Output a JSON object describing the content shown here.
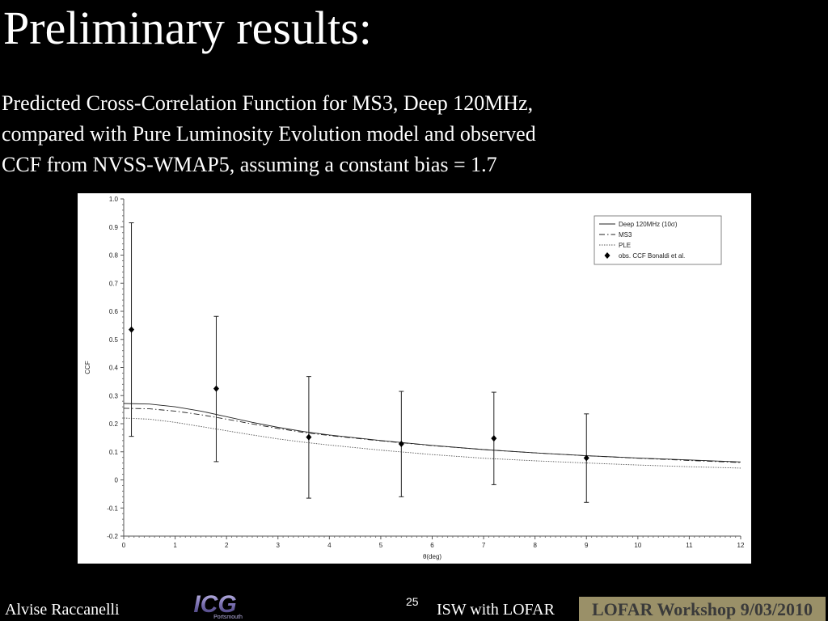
{
  "slide": {
    "title": "Preliminary results:",
    "subtitle_lines": [
      "Predicted Cross-Correlation Function for MS3, Deep 120MHz,",
      "compared with Pure Luminosity Evolution model and observed",
      "CCF from NVSS-WMAP5, assuming a constant bias = 1.7"
    ]
  },
  "footer": {
    "author": "Alvise Raccanelli",
    "logo_text": "ICG",
    "logo_subtext": "Portsmouth",
    "page_number": "25",
    "center_text": "ISW with LOFAR",
    "banner_text": "LOFAR Workshop 9/03/2010"
  },
  "colors": {
    "background": "#000000",
    "chart_background": "#ffffff",
    "banner": "#9a9068",
    "logo": "#7a6fb0"
  },
  "chart_data": {
    "type": "line",
    "xlabel": "θ(deg)",
    "ylabel": "CCF",
    "xlim": [
      0,
      12
    ],
    "ylim": [
      -0.2,
      1.0
    ],
    "x_ticks": [
      "0",
      "1",
      "2",
      "3",
      "4",
      "5",
      "6",
      "7",
      "8",
      "9",
      "10",
      "11",
      "12"
    ],
    "y_ticks": [
      "-0.2",
      "-0.1",
      "0",
      "0.1",
      "0.2",
      "0.3",
      "0.4",
      "0.5",
      "0.6",
      "0.7",
      "0.8",
      "0.9",
      "1.0"
    ],
    "grid": false,
    "legend_position": "top-right",
    "series": [
      {
        "name": "Deep 120MHz (10σ)",
        "style": "solid",
        "x": [
          0,
          0.5,
          1,
          1.5,
          2,
          2.5,
          3,
          3.5,
          4,
          5,
          6,
          7,
          8,
          9,
          10,
          11,
          12
        ],
        "y": [
          0.272,
          0.27,
          0.26,
          0.245,
          0.225,
          0.205,
          0.187,
          0.172,
          0.16,
          0.14,
          0.123,
          0.108,
          0.096,
          0.086,
          0.078,
          0.071,
          0.064
        ]
      },
      {
        "name": "MS3",
        "style": "dashdot",
        "x": [
          0,
          0.5,
          1,
          1.5,
          2,
          2.5,
          3,
          3.5,
          4,
          5,
          6,
          7,
          8,
          9,
          10,
          11,
          12
        ],
        "y": [
          0.255,
          0.253,
          0.245,
          0.232,
          0.216,
          0.199,
          0.183,
          0.169,
          0.158,
          0.139,
          0.122,
          0.108,
          0.096,
          0.086,
          0.077,
          0.069,
          0.062
        ]
      },
      {
        "name": "PLE",
        "style": "dotted",
        "x": [
          0,
          0.5,
          1,
          1.5,
          2,
          2.5,
          3,
          3.5,
          4,
          5,
          6,
          7,
          8,
          9,
          10,
          11,
          12
        ],
        "y": [
          0.22,
          0.216,
          0.205,
          0.19,
          0.175,
          0.16,
          0.146,
          0.134,
          0.124,
          0.106,
          0.09,
          0.077,
          0.068,
          0.06,
          0.053,
          0.047,
          0.042
        ]
      },
      {
        "name": "obs. CCF Bonaldi et al.",
        "style": "points",
        "x": [
          0.15,
          1.8,
          3.6,
          5.4,
          7.2,
          9.0
        ],
        "y": [
          0.535,
          0.325,
          0.152,
          0.128,
          0.148,
          0.078
        ],
        "err_low": [
          0.155,
          0.065,
          -0.065,
          -0.06,
          -0.017,
          -0.08
        ],
        "err_high": [
          0.915,
          0.582,
          0.368,
          0.315,
          0.312,
          0.235
        ]
      }
    ]
  }
}
